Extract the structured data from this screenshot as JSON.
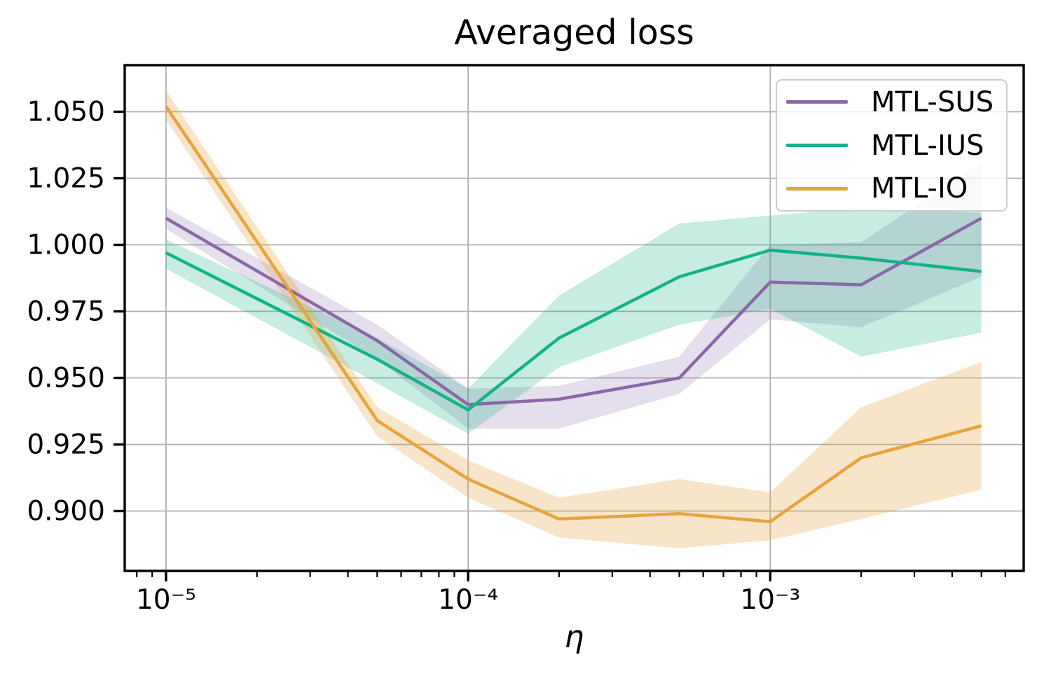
{
  "figure": {
    "background": "#ffffff"
  },
  "chart_data": {
    "type": "line",
    "title": "Averaged loss",
    "xlabel": "η",
    "ylabel": "",
    "xscale": "log",
    "grid": true,
    "grid_color": "#b0b0b0",
    "axis_color": "#000000",
    "xlim": [
      7.3e-06,
      0.0069
    ],
    "ylim": [
      0.8775,
      1.0675
    ],
    "x": [
      1e-05,
      5e-05,
      0.0001,
      0.0002,
      0.0005,
      0.001,
      0.002,
      0.005
    ],
    "xticks": [
      {
        "value": 1e-05,
        "label": "10⁻⁵"
      },
      {
        "value": 0.0001,
        "label": "10⁻⁴"
      },
      {
        "value": 0.001,
        "label": "10⁻³"
      }
    ],
    "yticks": [
      {
        "value": 0.9,
        "label": "0.900"
      },
      {
        "value": 0.925,
        "label": "0.925"
      },
      {
        "value": 0.95,
        "label": "0.950"
      },
      {
        "value": 0.975,
        "label": "0.975"
      },
      {
        "value": 1.0,
        "label": "1.000"
      },
      {
        "value": 1.025,
        "label": "1.025"
      },
      {
        "value": 1.05,
        "label": "1.050"
      }
    ],
    "legend": {
      "position": "upper right"
    },
    "series": [
      {
        "name": "MTL-SUS",
        "color": "#8a68a8",
        "band_color": "rgba(138,104,168,0.22)",
        "values": [
          1.01,
          0.964,
          0.94,
          0.942,
          0.95,
          0.986,
          0.985,
          1.01
        ],
        "band_lower": [
          1.006,
          0.957,
          0.931,
          0.931,
          0.944,
          0.972,
          0.969,
          0.988
        ],
        "band_upper": [
          1.014,
          0.97,
          0.946,
          0.947,
          0.958,
          1.0,
          1.001,
          1.031
        ]
      },
      {
        "name": "MTL-IUS",
        "color": "#13b287",
        "band_color": "rgba(19,178,135,0.24)",
        "values": [
          0.997,
          0.957,
          0.938,
          0.965,
          0.988,
          0.998,
          0.995,
          0.99
        ],
        "band_lower": [
          0.991,
          0.948,
          0.929,
          0.954,
          0.97,
          0.976,
          0.958,
          0.967
        ],
        "band_upper": [
          1.002,
          0.965,
          0.946,
          0.981,
          1.008,
          1.011,
          1.014,
          1.012
        ]
      },
      {
        "name": "MTL-IO",
        "color": "#e7a33d",
        "band_color": "rgba(231,163,61,0.28)",
        "values": [
          1.052,
          0.934,
          0.912,
          0.897,
          0.899,
          0.896,
          0.92,
          0.932
        ],
        "band_lower": [
          1.047,
          0.928,
          0.905,
          0.89,
          0.886,
          0.889,
          0.897,
          0.908
        ],
        "band_upper": [
          1.058,
          0.939,
          0.919,
          0.905,
          0.912,
          0.907,
          0.939,
          0.956
        ]
      }
    ]
  }
}
